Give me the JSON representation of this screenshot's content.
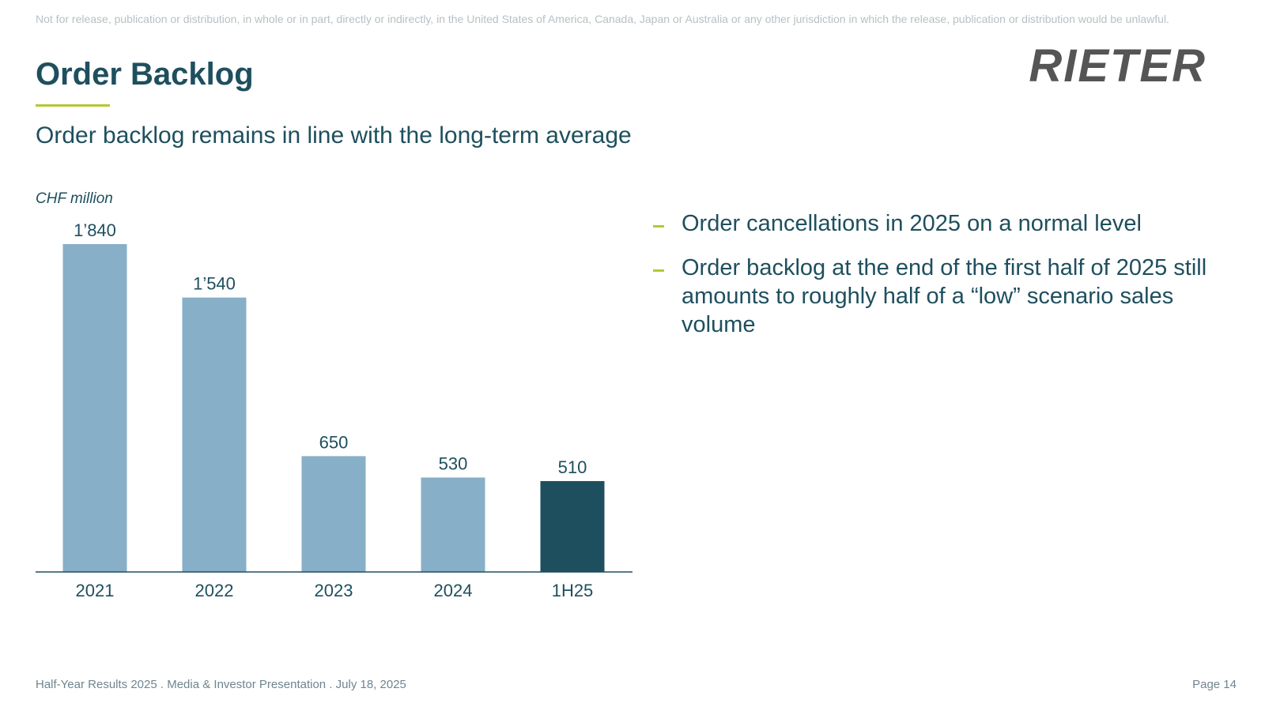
{
  "disclaimer": "Not for release, publication or distribution, in whole or in part, directly or indirectly, in the United States of America, Canada, Japan or Australia or any other jurisdiction in which the release, publication or distribution would be unlawful.",
  "logo": "RIETER",
  "header": {
    "title": "Order Backlog",
    "subtitle": "Order backlog remains in line with the long-term average"
  },
  "chart_data": {
    "type": "bar",
    "unit_label": "CHF million",
    "categories": [
      "2021",
      "2022",
      "2023",
      "2024",
      "1H25"
    ],
    "values": [
      1840,
      1540,
      650,
      530,
      510
    ],
    "value_labels": [
      "1’840",
      "1’540",
      "650",
      "530",
      "510"
    ],
    "colors": [
      "#87afc7",
      "#87afc7",
      "#87afc7",
      "#87afc7",
      "#1e4f5e"
    ]
  },
  "bullets": [
    "Order cancellations in 2025 on a normal level",
    "Order backlog at the end of the first half of 2025 still amounts to roughly half of a “low” scenario sales volume"
  ],
  "footer": {
    "left": "Half-Year Results 2025 . Media & Investor Presentation . July 18, 2025",
    "page": "Page 14"
  }
}
